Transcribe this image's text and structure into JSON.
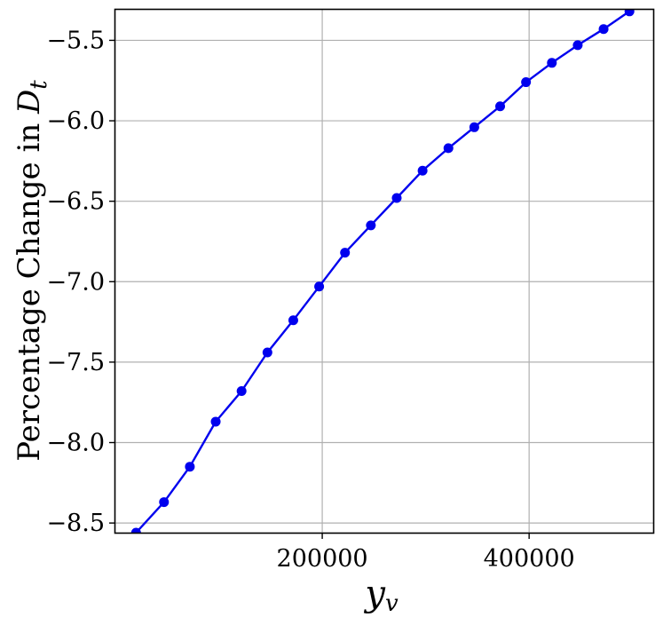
{
  "chart_data": {
    "type": "line",
    "title": "",
    "xlabel_main": "y",
    "xlabel_sub": "v",
    "ylabel_main": "Percentage Change in ",
    "ylabel_symbol": "D",
    "ylabel_sub": "t",
    "xlim": [
      0,
      520000
    ],
    "ylim": [
      -8.56,
      -5.31
    ],
    "x_ticks": [
      200000,
      400000
    ],
    "x_tick_labels": [
      "200000",
      "400000"
    ],
    "y_ticks": [
      -5.5,
      -6.0,
      -6.5,
      -7.0,
      -7.5,
      -8.0,
      -8.5
    ],
    "y_tick_labels": [
      "−5.5",
      "−6.0",
      "−6.5",
      "−7.0",
      "−7.5",
      "−8.0",
      "−8.5"
    ],
    "grid": true,
    "series": [
      {
        "color": "#0000ee",
        "marker": "circle",
        "x": [
          20000,
          47000,
          72000,
          97000,
          122000,
          147000,
          172000,
          197000,
          222000,
          247000,
          272000,
          297000,
          322000,
          347000,
          372000,
          397000,
          422000,
          447000,
          472000,
          497000
        ],
        "y": [
          -8.56,
          -8.37,
          -8.15,
          -7.87,
          -7.68,
          -7.44,
          -7.24,
          -7.03,
          -6.82,
          -6.65,
          -6.48,
          -6.31,
          -6.17,
          -6.04,
          -5.91,
          -5.76,
          -5.64,
          -5.53,
          -5.43,
          -5.32
        ]
      }
    ]
  }
}
